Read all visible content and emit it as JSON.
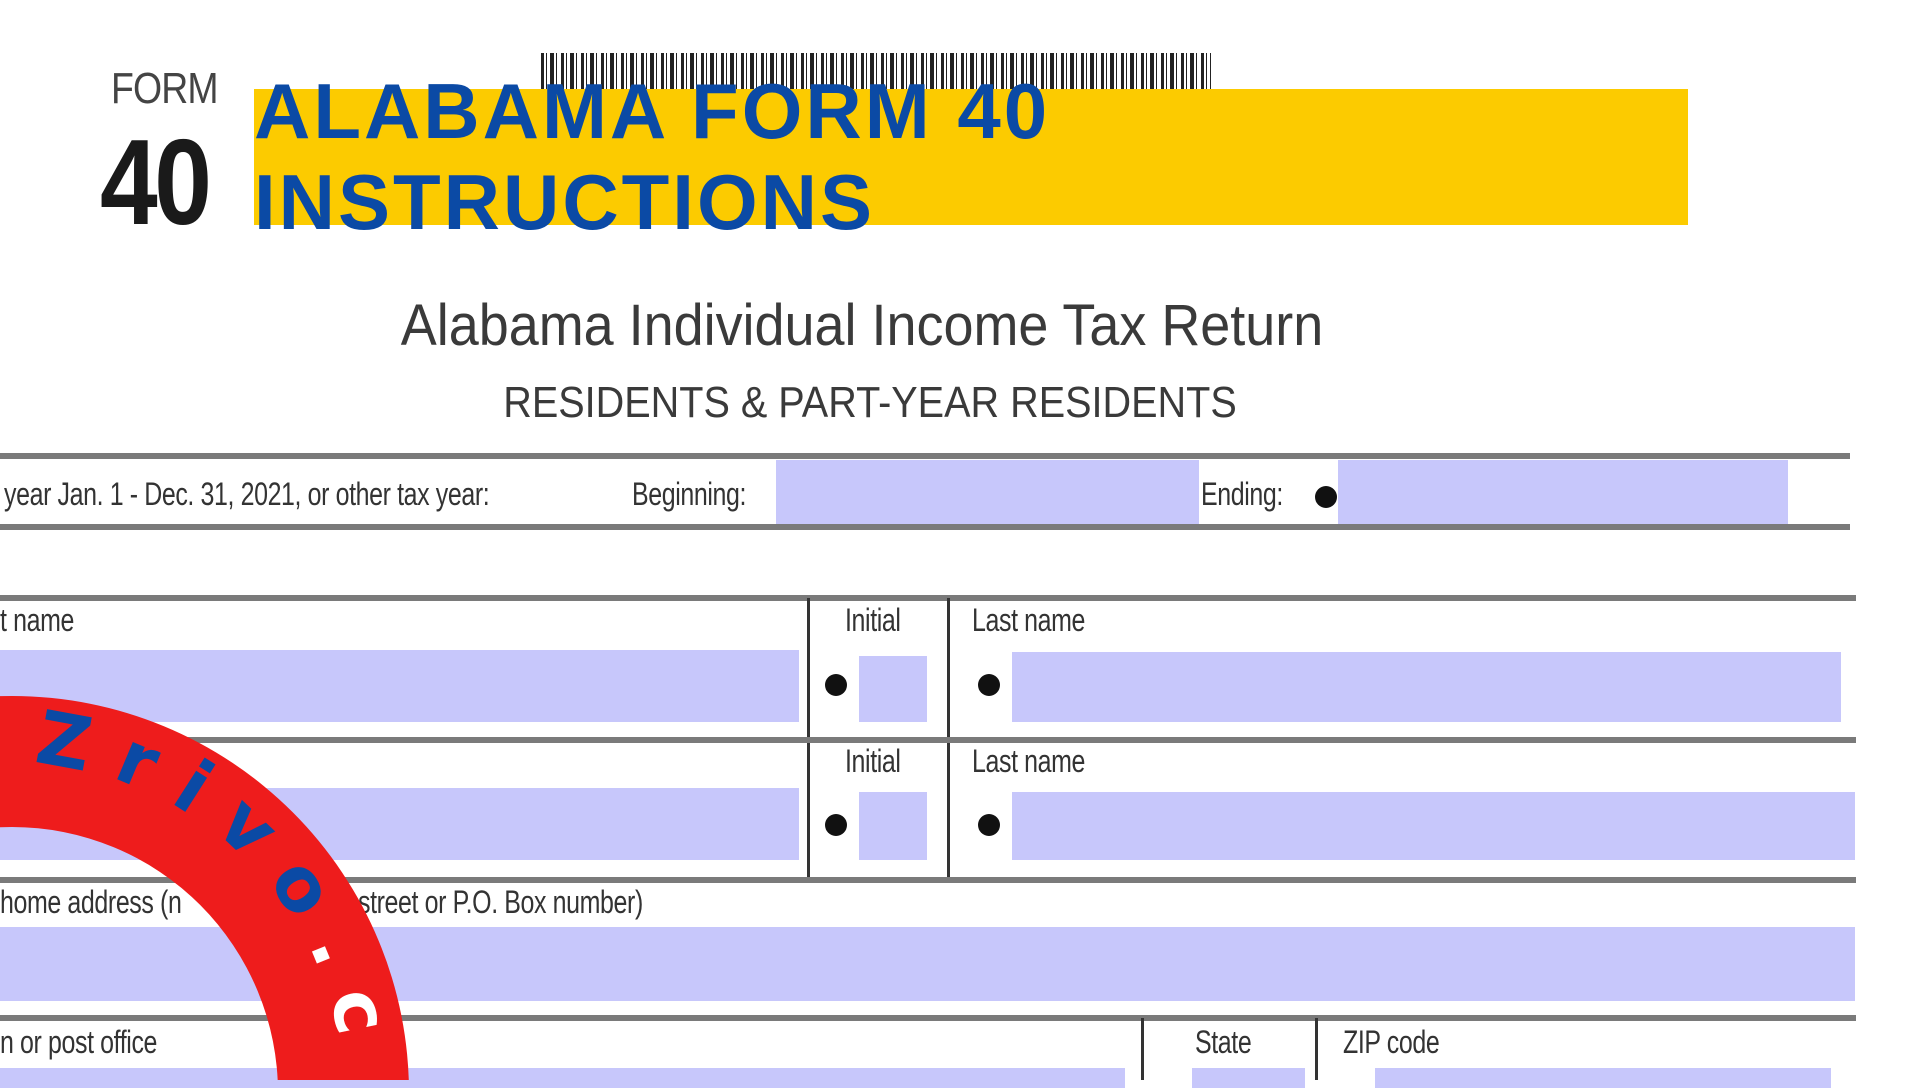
{
  "header": {
    "form_word": "FORM",
    "form_number": "40",
    "banner_title": "ALABAMA FORM 40 INSTRUCTIONS"
  },
  "form": {
    "title": "Alabama Individual Income Tax Return",
    "subtitle": "RESIDENTS & PART-YEAR RESIDENTS",
    "tax_year_text": "year Jan. 1 - Dec. 31, 2021, or other tax year:",
    "beginning_label": "Beginning:",
    "ending_label": "Ending:",
    "first_name_label": "t name",
    "initial_label": "Initial",
    "last_name_label": "Last name",
    "address_label": "home address (number and street or P.O. Box number)",
    "address_label_visible_left": "home address (n",
    "address_label_visible_right": "street or P.O. Box number)",
    "city_label": "n or post office",
    "state_label": "State",
    "zip_label": "ZIP code"
  },
  "watermark": {
    "brand_part1": "Zrivo",
    "brand_part2": ".com",
    "ring_color": "#ee1c1c",
    "brand_color": "#0b4aa5"
  },
  "colors": {
    "banner_bg": "#fccb00",
    "banner_text": "#0b4aa5",
    "field_fill": "#c7c7fb"
  }
}
